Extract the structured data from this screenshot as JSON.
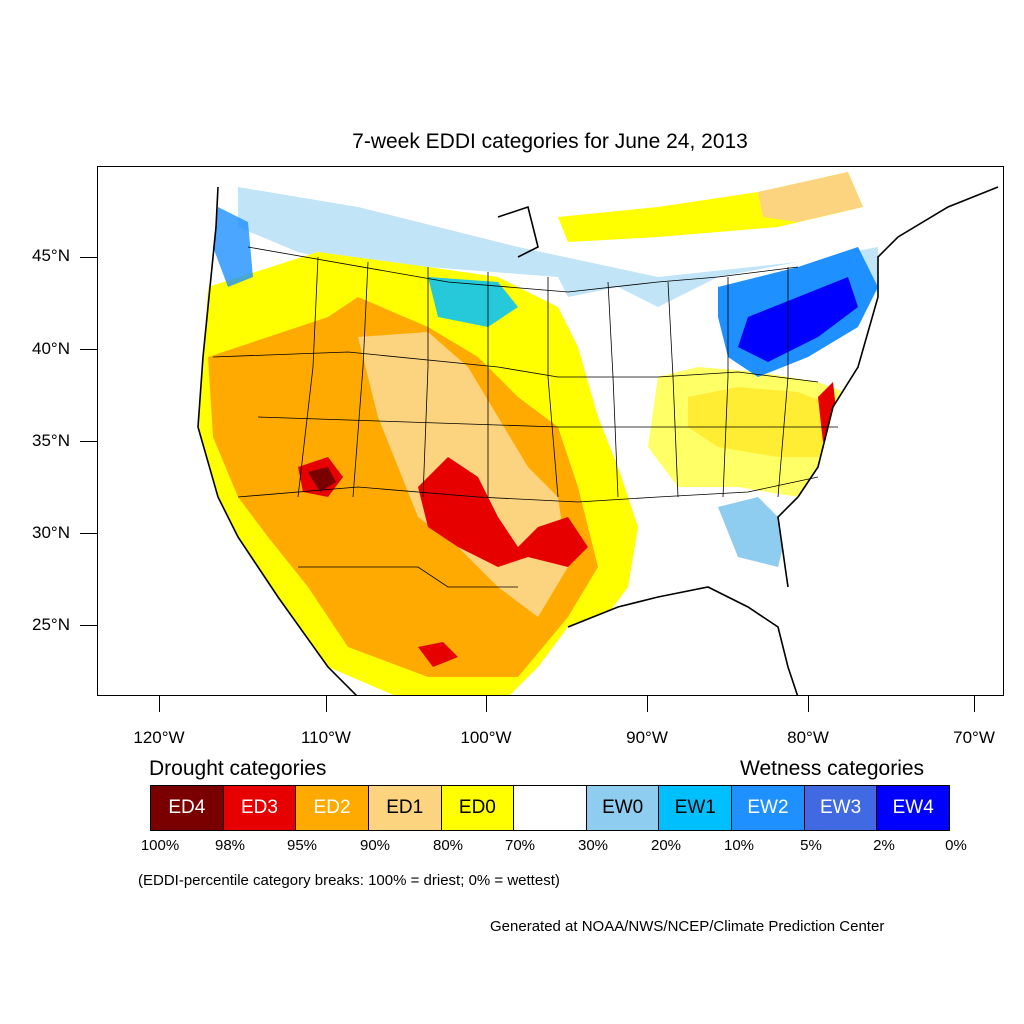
{
  "title": "7-week EDDI categories for June 24, 2013",
  "latitude_labels": [
    "45°N",
    "40°N",
    "35°N",
    "30°N",
    "25°N"
  ],
  "longitude_labels": [
    "120°W",
    "110°W",
    "100°W",
    "90°W",
    "80°W",
    "70°W"
  ],
  "legend": {
    "drought_heading": "Drought categories",
    "wetness_heading": "Wetness categories",
    "categories": [
      {
        "label": "ED4",
        "color": "#7a0000",
        "text_color": "#ffffff"
      },
      {
        "label": "ED3",
        "color": "#e60000",
        "text_color": "#ffffff"
      },
      {
        "label": "ED2",
        "color": "#ffaa00",
        "text_color": "#ffffff"
      },
      {
        "label": "ED1",
        "color": "#fcd37f",
        "text_color": "#000000"
      },
      {
        "label": "ED0",
        "color": "#ffff00",
        "text_color": "#000000"
      },
      {
        "label": "",
        "color": "#ffffff",
        "text_color": "#000000"
      },
      {
        "label": "EW0",
        "color": "#8ecdf0",
        "text_color": "#000000"
      },
      {
        "label": "EW1",
        "color": "#00bfff",
        "text_color": "#000000"
      },
      {
        "label": "EW2",
        "color": "#1e90ff",
        "text_color": "#ffffff"
      },
      {
        "label": "EW3",
        "color": "#4169e1",
        "text_color": "#ffffff"
      },
      {
        "label": "EW4",
        "color": "#0000ff",
        "text_color": "#ffffff"
      }
    ],
    "breaks": [
      "100%",
      "98%",
      "95%",
      "90%",
      "80%",
      "70%",
      "30%",
      "20%",
      "10%",
      "5%",
      "2%",
      "0%"
    ]
  },
  "note": "(EDDI-percentile category breaks: 100% = driest; 0% = wettest)",
  "credit": "Generated at NOAA/NWS/NCEP/Climate Prediction Center"
}
